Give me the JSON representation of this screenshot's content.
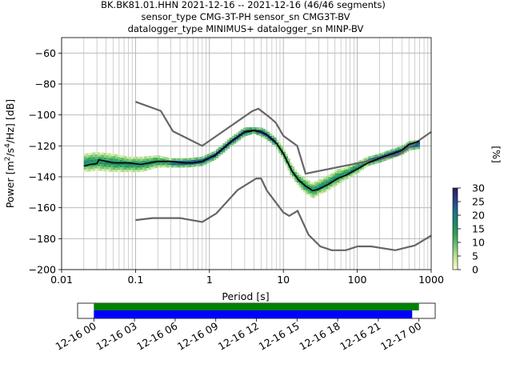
{
  "title_lines": [
    "BK.BK81.01.HHN   2021-12-16 -- 2021-12-16  (46/46 segments)",
    "sensor_type CMG-3T-PH sensor_sn CMG3T-BV",
    "datalogger_type MINIMUS+ datalogger_sn MINP-BV"
  ],
  "chart_data": [
    {
      "type": "heatmap",
      "xlabel": "Period [s]",
      "ylabel": "Power [m²/s⁴/Hz] [dB]",
      "x_scale": "log",
      "xlim": [
        0.01,
        1000
      ],
      "ylim": [
        -200,
        -50
      ],
      "x_ticks": [
        0.01,
        0.1,
        1,
        10,
        100,
        1000
      ],
      "x_tick_labels": [
        "0.01",
        "0.1",
        "1",
        "10",
        "100",
        "1000"
      ],
      "y_ticks": [
        -200,
        -180,
        -160,
        -140,
        -120,
        -100,
        -80,
        -60
      ],
      "y_tick_labels": [
        "−200",
        "−180",
        "−160",
        "−140",
        "−120",
        "−100",
        "−80",
        "−60"
      ],
      "grid": true,
      "colorbar": {
        "label": "[%]",
        "range": [
          0,
          30
        ],
        "ticks": [
          0,
          5,
          10,
          15,
          20,
          25,
          30
        ],
        "tick_labels": [
          "0",
          "5",
          "10",
          "15",
          "20",
          "25",
          "30"
        ],
        "colormap": [
          "#ffffcc",
          "#c2e699",
          "#78c679",
          "#31a354",
          "#1b8a6b",
          "#1f6f8b",
          "#2c3e8a",
          "#2d1e5a"
        ]
      },
      "mean_curve": {
        "color": "#000000",
        "points": [
          [
            0.02,
            -133
          ],
          [
            0.025,
            -132
          ],
          [
            0.03,
            -131.5
          ],
          [
            0.032,
            -129
          ],
          [
            0.04,
            -130
          ],
          [
            0.05,
            -131
          ],
          [
            0.08,
            -131
          ],
          [
            0.12,
            -132
          ],
          [
            0.2,
            -130
          ],
          [
            0.3,
            -130
          ],
          [
            0.45,
            -131
          ],
          [
            0.6,
            -131
          ],
          [
            0.8,
            -130
          ],
          [
            1.2,
            -126
          ],
          [
            2,
            -117
          ],
          [
            3,
            -111
          ],
          [
            4,
            -110
          ],
          [
            5,
            -111
          ],
          [
            6,
            -113
          ],
          [
            8,
            -118
          ],
          [
            10,
            -125
          ],
          [
            13,
            -136
          ],
          [
            16,
            -142
          ],
          [
            20,
            -146
          ],
          [
            25,
            -149
          ],
          [
            30,
            -148
          ],
          [
            40,
            -145
          ],
          [
            55,
            -141
          ],
          [
            70,
            -139
          ],
          [
            100,
            -135
          ],
          [
            140,
            -131
          ],
          [
            200,
            -128
          ],
          [
            300,
            -125
          ],
          [
            400,
            -123
          ],
          [
            500,
            -119
          ],
          [
            700,
            -117
          ]
        ]
      },
      "density_band": {
        "points": [
          [
            0.02,
            -131,
            6
          ],
          [
            0.03,
            -130,
            6
          ],
          [
            0.05,
            -131,
            6
          ],
          [
            0.08,
            -132,
            5
          ],
          [
            0.12,
            -132,
            5
          ],
          [
            0.2,
            -130,
            4
          ],
          [
            0.3,
            -131,
            3
          ],
          [
            0.5,
            -131,
            3
          ],
          [
            0.8,
            -130,
            3
          ],
          [
            1.2,
            -126,
            3
          ],
          [
            2,
            -117,
            3
          ],
          [
            3,
            -111,
            3
          ],
          [
            4,
            -110,
            2
          ],
          [
            5,
            -111,
            3
          ],
          [
            6,
            -113,
            3
          ],
          [
            8,
            -118,
            3
          ],
          [
            10,
            -125,
            4
          ],
          [
            13,
            -136,
            4
          ],
          [
            16,
            -142,
            4
          ],
          [
            20,
            -146,
            5
          ],
          [
            25,
            -149,
            5
          ],
          [
            30,
            -147,
            5
          ],
          [
            40,
            -144,
            5
          ],
          [
            55,
            -140,
            5
          ],
          [
            70,
            -138,
            4
          ],
          [
            100,
            -134,
            4
          ],
          [
            140,
            -130,
            3
          ],
          [
            200,
            -128,
            3
          ],
          [
            300,
            -125,
            3
          ],
          [
            400,
            -123,
            3
          ],
          [
            500,
            -120,
            3
          ],
          [
            700,
            -119,
            3
          ]
        ]
      },
      "noise_models": {
        "color": "#666666",
        "high": [
          [
            0.1,
            -91.5
          ],
          [
            0.22,
            -97.4
          ],
          [
            0.32,
            -110.5
          ],
          [
            0.8,
            -120
          ],
          [
            3.8,
            -97.5
          ],
          [
            4.6,
            -96
          ],
          [
            6.3,
            -101
          ],
          [
            7.9,
            -105
          ],
          [
            10,
            -113.5
          ],
          [
            15.4,
            -120
          ],
          [
            20,
            -138
          ],
          [
            354,
            -126
          ],
          [
            1000,
            -111
          ]
        ],
        "low": [
          [
            0.1,
            -168
          ],
          [
            0.17,
            -166.7
          ],
          [
            0.4,
            -166.7
          ],
          [
            0.8,
            -169.2
          ],
          [
            1.24,
            -163.7
          ],
          [
            2.4,
            -148.6
          ],
          [
            4.3,
            -141.1
          ],
          [
            5,
            -141.1
          ],
          [
            6,
            -149
          ],
          [
            10,
            -163
          ],
          [
            12,
            -165.3
          ],
          [
            15.6,
            -162
          ],
          [
            21.9,
            -177.5
          ],
          [
            31.6,
            -185
          ],
          [
            45,
            -187.5
          ],
          [
            70,
            -187.5
          ],
          [
            101,
            -185
          ],
          [
            154,
            -185
          ],
          [
            328,
            -187.5
          ],
          [
            600,
            -184.4
          ],
          [
            1000,
            -178
          ]
        ]
      }
    },
    {
      "type": "bar",
      "x_tick_labels": [
        "12-16 00",
        "12-16 03",
        "12-16 06",
        "12-16 09",
        "12-16 12",
        "12-16 15",
        "12-16 18",
        "12-16 21",
        "12-17 00"
      ],
      "x_range_hours": [
        -1.2,
        25.2
      ],
      "series": [
        {
          "color": "#008000",
          "start_hour": 0.0,
          "end_hour": 24.0
        },
        {
          "color": "#0000ff",
          "start_hour": 0.0,
          "end_hour": 23.5
        }
      ]
    }
  ]
}
